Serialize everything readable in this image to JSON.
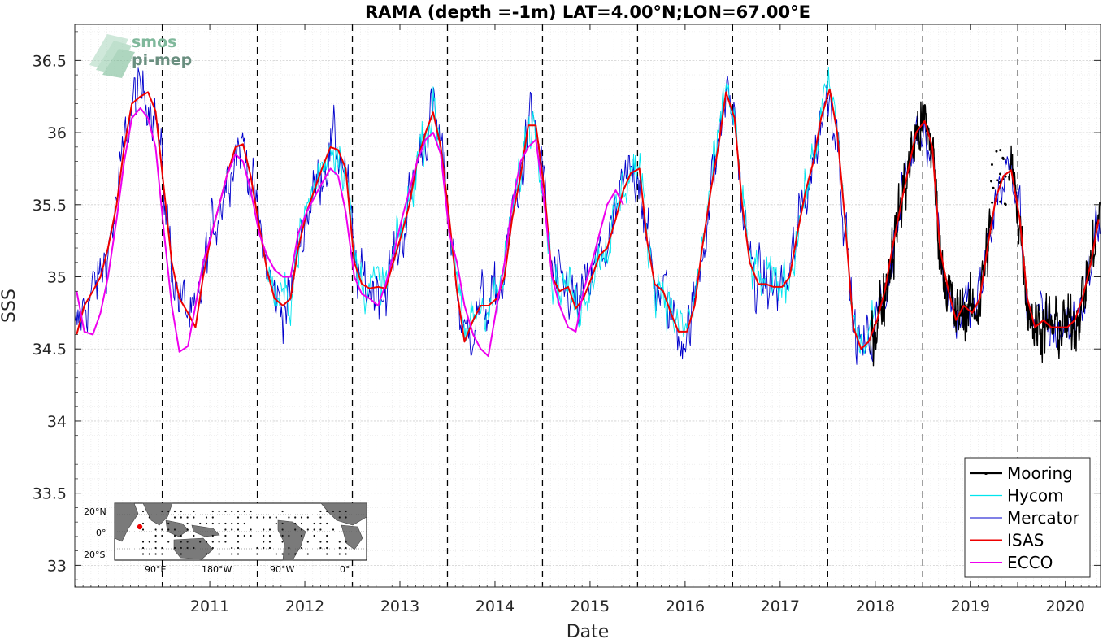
{
  "chart_data": {
    "type": "line",
    "title": "RAMA (depth =-1m) LAT=4.00°N;LON=67.00°E",
    "xlabel": "Date",
    "ylabel": "SSS",
    "xlim": [
      2010.08,
      2020.87
    ],
    "ylim": [
      32.85,
      36.75
    ],
    "x_ticks": [
      "2011",
      "2012",
      "2013",
      "2014",
      "2015",
      "2016",
      "2017",
      "2018",
      "2019",
      "2020"
    ],
    "y_ticks": [
      "33",
      "33.5",
      "34",
      "34.5",
      "35",
      "35.5",
      "36",
      "36.5"
    ],
    "year_boundaries": [
      2011,
      2012,
      2013,
      2014,
      2015,
      2016,
      2017,
      2018,
      2019,
      2020
    ],
    "grid": "on",
    "legend_position": "bottom-right",
    "colors": {
      "mooring": "#000000",
      "hycom": "#00e5ee",
      "mercator": "#0000cc",
      "isas": "#ee0000",
      "ecco": "#ee00ee"
    },
    "series": [
      {
        "name": "ISAS",
        "key": "isas",
        "x": [
          2010.1,
          2010.18,
          2010.27,
          2010.35,
          2010.43,
          2010.52,
          2010.6,
          2010.68,
          2010.77,
          2010.85,
          2010.93,
          2011.02,
          2011.1,
          2011.18,
          2011.27,
          2011.35,
          2011.43,
          2011.52,
          2011.6,
          2011.68,
          2011.77,
          2011.85,
          2011.93,
          2012.02,
          2012.1,
          2012.18,
          2012.27,
          2012.35,
          2012.43,
          2012.52,
          2012.6,
          2012.68,
          2012.77,
          2012.85,
          2012.93,
          2013.02,
          2013.1,
          2013.18,
          2013.27,
          2013.35,
          2013.43,
          2013.52,
          2013.6,
          2013.68,
          2013.77,
          2013.85,
          2013.93,
          2014.02,
          2014.1,
          2014.18,
          2014.27,
          2014.35,
          2014.43,
          2014.52,
          2014.6,
          2014.68,
          2014.77,
          2014.85,
          2014.93,
          2015.02,
          2015.1,
          2015.18,
          2015.27,
          2015.35,
          2015.43,
          2015.52,
          2015.6,
          2015.68,
          2015.77,
          2015.85,
          2015.93,
          2016.02,
          2016.1,
          2016.18,
          2016.27,
          2016.35,
          2016.43,
          2016.52,
          2016.6,
          2016.68,
          2016.77,
          2016.85,
          2016.93,
          2017.02,
          2017.1,
          2017.18,
          2017.27,
          2017.35,
          2017.43,
          2017.52,
          2017.6,
          2017.68,
          2017.77,
          2017.85,
          2017.93,
          2018.02,
          2018.1,
          2018.18,
          2018.27,
          2018.35,
          2018.43,
          2018.52,
          2018.6,
          2018.68,
          2018.77,
          2018.85,
          2018.93,
          2019.02,
          2019.1,
          2019.18,
          2019.27,
          2019.35,
          2019.43,
          2019.52,
          2019.6,
          2019.68,
          2019.77,
          2019.85,
          2019.93,
          2020.02,
          2020.1,
          2020.18,
          2020.27,
          2020.35,
          2020.43,
          2020.52,
          2020.6,
          2020.68,
          2020.77,
          2020.85
        ],
        "y": [
          34.6,
          34.8,
          34.9,
          35.0,
          35.2,
          35.5,
          35.9,
          36.2,
          36.25,
          36.28,
          36.15,
          35.6,
          35.1,
          34.85,
          34.75,
          34.65,
          35.0,
          35.3,
          35.5,
          35.7,
          35.9,
          35.92,
          35.7,
          35.35,
          35.05,
          34.85,
          34.8,
          34.85,
          35.2,
          35.45,
          35.6,
          35.75,
          35.9,
          35.88,
          35.75,
          35.1,
          34.95,
          34.92,
          34.93,
          34.92,
          35.1,
          35.3,
          35.5,
          35.8,
          36.0,
          36.14,
          35.9,
          35.4,
          34.9,
          34.55,
          34.7,
          34.8,
          34.8,
          34.85,
          35.0,
          35.4,
          35.7,
          36.05,
          36.05,
          35.6,
          35.0,
          34.9,
          34.93,
          34.78,
          34.85,
          35.0,
          35.15,
          35.2,
          35.4,
          35.6,
          35.72,
          35.75,
          35.25,
          34.95,
          34.9,
          34.75,
          34.62,
          34.62,
          34.8,
          35.2,
          35.6,
          35.9,
          36.28,
          36.1,
          35.5,
          35.1,
          34.95,
          34.95,
          34.93,
          34.93,
          35.0,
          35.3,
          35.6,
          35.8,
          36.1,
          36.3,
          36.0,
          35.4,
          34.65,
          34.5,
          34.55,
          34.7,
          34.9,
          35.2,
          35.5,
          35.75,
          36.0,
          36.08,
          35.9,
          35.2,
          34.9,
          34.7,
          34.8,
          34.75,
          34.85,
          35.2,
          35.55,
          35.7,
          35.74,
          35.4,
          34.85,
          34.65,
          34.7,
          34.65,
          34.65,
          34.65,
          34.7,
          34.85,
          35.1,
          35.4
        ]
      },
      {
        "name": "ECCO",
        "key": "ecco",
        "x": [
          2010.1,
          2010.18,
          2010.27,
          2010.35,
          2010.43,
          2010.52,
          2010.6,
          2010.68,
          2010.77,
          2010.85,
          2010.93,
          2011.02,
          2011.1,
          2011.18,
          2011.27,
          2011.35,
          2011.43,
          2011.52,
          2011.6,
          2011.68,
          2011.77,
          2011.85,
          2011.93,
          2012.02,
          2012.1,
          2012.18,
          2012.27,
          2012.35,
          2012.43,
          2012.52,
          2012.6,
          2012.68,
          2012.77,
          2012.85,
          2012.93,
          2013.02,
          2013.1,
          2013.18,
          2013.27,
          2013.35,
          2013.43,
          2013.52,
          2013.6,
          2013.68,
          2013.77,
          2013.85,
          2013.93,
          2014.02,
          2014.1,
          2014.18,
          2014.27,
          2014.35,
          2014.43,
          2014.52,
          2014.6,
          2014.68,
          2014.77,
          2014.85,
          2014.93,
          2015.02,
          2015.1,
          2015.18,
          2015.27,
          2015.35,
          2015.43,
          2015.52,
          2015.6,
          2015.68,
          2015.77,
          2015.85
        ],
        "y": [
          34.9,
          34.62,
          34.6,
          34.75,
          35.0,
          35.4,
          35.8,
          36.1,
          36.17,
          36.1,
          35.9,
          35.3,
          34.8,
          34.48,
          34.52,
          34.8,
          35.1,
          35.3,
          35.5,
          35.7,
          35.85,
          35.8,
          35.6,
          35.3,
          35.15,
          35.05,
          35.0,
          35.0,
          35.3,
          35.45,
          35.55,
          35.65,
          35.75,
          35.7,
          35.45,
          35.0,
          34.88,
          34.85,
          34.8,
          34.95,
          35.15,
          35.4,
          35.6,
          35.8,
          35.95,
          36.0,
          35.85,
          35.3,
          35.1,
          34.8,
          34.6,
          34.5,
          34.45,
          34.8,
          35.1,
          35.5,
          35.8,
          35.9,
          35.95,
          35.5,
          35.0,
          34.8,
          34.65,
          34.62,
          34.9,
          35.1,
          35.3,
          35.5,
          35.6,
          35.5
        ]
      },
      {
        "name": "Hycom",
        "key": "hycom",
        "x_range": [
          2012.1,
          2018.5
        ],
        "note_points": "dense daily series, reproduced procedurally from ISAS baseline"
      },
      {
        "name": "Mercator",
        "key": "mercator",
        "x_range": [
          2010.08,
          2020.87
        ]
      },
      {
        "name": "Mooring",
        "key": "mooring",
        "x_range": [
          2018.45,
          2020.87
        ]
      }
    ],
    "legend": [
      "Mooring",
      "Hycom",
      "Mercator",
      "ISAS",
      "ECCO"
    ]
  },
  "logo": {
    "line1": "smos",
    "line2": "pi-mep"
  },
  "inset_map": {
    "lat_labels": [
      "20°N",
      "0°",
      "20°S"
    ],
    "lon_labels": [
      "90°E",
      "180°W",
      "90°W",
      "0°"
    ],
    "marker_color": "#ee0000"
  }
}
